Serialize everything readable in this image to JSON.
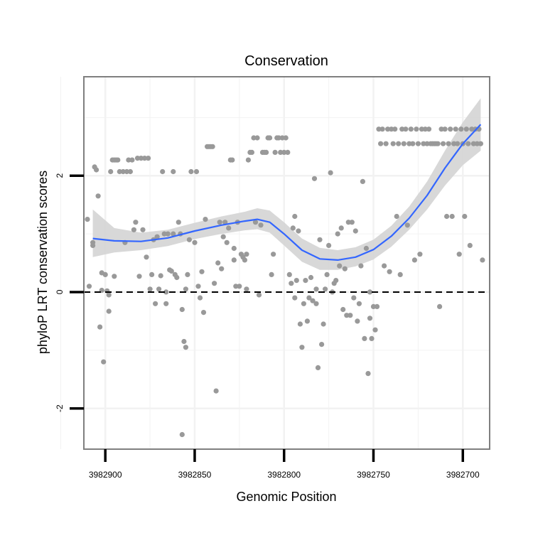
{
  "chart_data": {
    "type": "scatter",
    "title": "Conservation",
    "xlabel": "Genomic Position",
    "ylabel": "phyloP LRT conservation scores",
    "x_reversed": true,
    "xlim": [
      3982912,
      3982685
    ],
    "ylim": [
      -2.7,
      3.7
    ],
    "x_ticks": [
      {
        "value": 3982900,
        "label": "3982900"
      },
      {
        "value": 3982850,
        "label": "3982850"
      },
      {
        "value": 3982800,
        "label": "3982800"
      },
      {
        "value": 3982750,
        "label": "3982750"
      },
      {
        "value": 3982700,
        "label": "3982700"
      }
    ],
    "y_ticks": [
      {
        "value": 2,
        "label": "2"
      },
      {
        "value": 0,
        "label": "0"
      },
      {
        "value": -2,
        "label": "-2"
      }
    ],
    "x_minor_grid": [
      3982925,
      3982875,
      3982825,
      3982775,
      3982725
    ],
    "y_minor_grid": [
      3,
      1,
      -1
    ],
    "reference_line": {
      "y": 0,
      "style": "dashed"
    },
    "grid": true,
    "colors": {
      "points": "#999999",
      "smooth": "#3366ff",
      "ribbon": "#d4d4d4",
      "panel_border": "#7f7f7f",
      "grid": "#f2f2f2"
    },
    "smooth": [
      {
        "x": 3982907,
        "y": 0.92,
        "lo": 0.6,
        "hi": 1.42
      },
      {
        "x": 3982895,
        "y": 0.88,
        "lo": 0.68,
        "hi": 1.1
      },
      {
        "x": 3982880,
        "y": 0.87,
        "lo": 0.72,
        "hi": 1.02
      },
      {
        "x": 3982865,
        "y": 0.93,
        "lo": 0.79,
        "hi": 1.07
      },
      {
        "x": 3982850,
        "y": 1.05,
        "lo": 0.91,
        "hi": 1.19
      },
      {
        "x": 3982835,
        "y": 1.15,
        "lo": 1.0,
        "hi": 1.3
      },
      {
        "x": 3982822,
        "y": 1.22,
        "lo": 1.06,
        "hi": 1.38
      },
      {
        "x": 3982815,
        "y": 1.25,
        "lo": 1.08,
        "hi": 1.44
      },
      {
        "x": 3982808,
        "y": 1.2,
        "lo": 1.02,
        "hi": 1.4
      },
      {
        "x": 3982800,
        "y": 1.0,
        "lo": 0.8,
        "hi": 1.2
      },
      {
        "x": 3982790,
        "y": 0.72,
        "lo": 0.52,
        "hi": 0.92
      },
      {
        "x": 3982780,
        "y": 0.57,
        "lo": 0.38,
        "hi": 0.76
      },
      {
        "x": 3982770,
        "y": 0.55,
        "lo": 0.38,
        "hi": 0.72
      },
      {
        "x": 3982760,
        "y": 0.6,
        "lo": 0.44,
        "hi": 0.77
      },
      {
        "x": 3982750,
        "y": 0.73,
        "lo": 0.56,
        "hi": 0.9
      },
      {
        "x": 3982740,
        "y": 0.96,
        "lo": 0.78,
        "hi": 1.14
      },
      {
        "x": 3982730,
        "y": 1.27,
        "lo": 1.07,
        "hi": 1.47
      },
      {
        "x": 3982720,
        "y": 1.66,
        "lo": 1.42,
        "hi": 1.9
      },
      {
        "x": 3982710,
        "y": 2.13,
        "lo": 1.83,
        "hi": 2.43
      },
      {
        "x": 3982700,
        "y": 2.55,
        "lo": 2.18,
        "hi": 2.92
      },
      {
        "x": 3982690,
        "y": 2.88,
        "lo": 2.43,
        "hi": 3.33
      }
    ],
    "points": [
      [
        3982910,
        1.25
      ],
      [
        3982909,
        0.1
      ],
      [
        3982907,
        0.85
      ],
      [
        3982907,
        0.8
      ],
      [
        3982906,
        2.15
      ],
      [
        3982905,
        2.1
      ],
      [
        3982904,
        1.65
      ],
      [
        3982903,
        -0.6
      ],
      [
        3982902,
        0.03
      ],
      [
        3982902,
        0.33
      ],
      [
        3982901,
        -1.2
      ],
      [
        3982900,
        0.3
      ],
      [
        3982899,
        0.02
      ],
      [
        3982898,
        -0.05
      ],
      [
        3982898,
        -0.33
      ],
      [
        3982897,
        2.07
      ],
      [
        3982896,
        2.27
      ],
      [
        3982895,
        2.27
      ],
      [
        3982895,
        0.27
      ],
      [
        3982894,
        2.27
      ],
      [
        3982893,
        2.27
      ],
      [
        3982892,
        2.07
      ],
      [
        3982890,
        2.07
      ],
      [
        3982889,
        0.85
      ],
      [
        3982888,
        2.07
      ],
      [
        3982887,
        2.27
      ],
      [
        3982886,
        2.07
      ],
      [
        3982885,
        2.27
      ],
      [
        3982884,
        1.07
      ],
      [
        3982883,
        1.2
      ],
      [
        3982882,
        2.3
      ],
      [
        3982881,
        0.27
      ],
      [
        3982880,
        2.3
      ],
      [
        3982879,
        1.07
      ],
      [
        3982878,
        2.3
      ],
      [
        3982877,
        0.6
      ],
      [
        3982876,
        2.3
      ],
      [
        3982875,
        0.05
      ],
      [
        3982874,
        0.3
      ],
      [
        3982873,
        0.9
      ],
      [
        3982872,
        -0.2
      ],
      [
        3982871,
        0.95
      ],
      [
        3982870,
        0.05
      ],
      [
        3982869,
        0.28
      ],
      [
        3982868,
        2.07
      ],
      [
        3982867,
        1.0
      ],
      [
        3982866,
        0.0
      ],
      [
        3982866,
        -0.2
      ],
      [
        3982865,
        1.0
      ],
      [
        3982864,
        0.38
      ],
      [
        3982863,
        0.36
      ],
      [
        3982862,
        1.0
      ],
      [
        3982862,
        2.07
      ],
      [
        3982861,
        0.3
      ],
      [
        3982860,
        0.25
      ],
      [
        3982859,
        1.2
      ],
      [
        3982858,
        1.0
      ],
      [
        3982857,
        -0.3
      ],
      [
        3982856,
        -0.85
      ],
      [
        3982855,
        -0.95
      ],
      [
        3982855,
        0.05
      ],
      [
        3982854,
        0.3
      ],
      [
        3982853,
        0.9
      ],
      [
        3982852,
        2.07
      ],
      [
        3982850,
        0.85
      ],
      [
        3982849,
        2.07
      ],
      [
        3982848,
        0.1
      ],
      [
        3982847,
        -0.1
      ],
      [
        3982846,
        0.35
      ],
      [
        3982845,
        -0.35
      ],
      [
        3982844,
        1.25
      ],
      [
        3982843,
        2.5
      ],
      [
        3982842,
        2.5
      ],
      [
        3982841,
        2.5
      ],
      [
        3982840,
        2.5
      ],
      [
        3982839,
        0.15
      ],
      [
        3982838,
        -1.7
      ],
      [
        3982837,
        0.5
      ],
      [
        3982836,
        1.2
      ],
      [
        3982835,
        0.4
      ],
      [
        3982834,
        0.95
      ],
      [
        3982833,
        1.2
      ],
      [
        3982832,
        0.85
      ],
      [
        3982831,
        1.1
      ],
      [
        3982830,
        2.27
      ],
      [
        3982829,
        2.27
      ],
      [
        3982828,
        0.75
      ],
      [
        3982828,
        0.55
      ],
      [
        3982827,
        0.1
      ],
      [
        3982826,
        1.2
      ],
      [
        3982825,
        0.1
      ],
      [
        3982824,
        0.65
      ],
      [
        3982823,
        0.6
      ],
      [
        3982822,
        0.55
      ],
      [
        3982821,
        0.05
      ],
      [
        3982821,
        0.65
      ],
      [
        3982820,
        2.27
      ],
      [
        3982819,
        2.4
      ],
      [
        3982818,
        2.4
      ],
      [
        3982817,
        2.65
      ],
      [
        3982816,
        1.2
      ],
      [
        3982815,
        2.65
      ],
      [
        3982814,
        -0.05
      ],
      [
        3982813,
        1.15
      ],
      [
        3982812,
        2.4
      ],
      [
        3982811,
        2.4
      ],
      [
        3982810,
        2.4
      ],
      [
        3982809,
        2.65
      ],
      [
        3982808,
        2.65
      ],
      [
        3982807,
        0.3
      ],
      [
        3982806,
        0.65
      ],
      [
        3982805,
        2.4
      ],
      [
        3982804,
        2.65
      ],
      [
        3982803,
        2.65
      ],
      [
        3982802,
        2.4
      ],
      [
        3982801,
        2.65
      ],
      [
        3982800,
        2.4
      ],
      [
        3982799,
        2.65
      ],
      [
        3982798,
        2.4
      ],
      [
        3982797,
        0.3
      ],
      [
        3982796,
        0.15
      ],
      [
        3982795,
        1.1
      ],
      [
        3982794,
        -0.1
      ],
      [
        3982794,
        1.3
      ],
      [
        3982793,
        0.2
      ],
      [
        3982792,
        1.05
      ],
      [
        3982791,
        -0.55
      ],
      [
        3982790,
        -0.95
      ],
      [
        3982789,
        -0.2
      ],
      [
        3982788,
        0.2
      ],
      [
        3982787,
        -0.5
      ],
      [
        3982786,
        -0.1
      ],
      [
        3982785,
        0.25
      ],
      [
        3982784,
        -0.15
      ],
      [
        3982783,
        1.95
      ],
      [
        3982782,
        -0.2
      ],
      [
        3982782,
        0.05
      ],
      [
        3982781,
        -1.3
      ],
      [
        3982780,
        0.9
      ],
      [
        3982779,
        -0.9
      ],
      [
        3982778,
        -0.55
      ],
      [
        3982777,
        0.05
      ],
      [
        3982776,
        0.3
      ],
      [
        3982775,
        0.8
      ],
      [
        3982774,
        2.05
      ],
      [
        3982773,
        0.0
      ],
      [
        3982772,
        0.15
      ],
      [
        3982771,
        0.2
      ],
      [
        3982770,
        1.0
      ],
      [
        3982769,
        0.45
      ],
      [
        3982768,
        1.1
      ],
      [
        3982767,
        -0.3
      ],
      [
        3982766,
        0.4
      ],
      [
        3982765,
        -0.4
      ],
      [
        3982764,
        1.2
      ],
      [
        3982763,
        -0.4
      ],
      [
        3982762,
        1.2
      ],
      [
        3982761,
        -0.1
      ],
      [
        3982760,
        1.05
      ],
      [
        3982759,
        -0.5
      ],
      [
        3982758,
        -0.2
      ],
      [
        3982757,
        0.45
      ],
      [
        3982756,
        1.9
      ],
      [
        3982755,
        -0.8
      ],
      [
        3982754,
        0.75
      ],
      [
        3982753,
        -1.4
      ],
      [
        3982752,
        0.0
      ],
      [
        3982752,
        -0.45
      ],
      [
        3982751,
        -0.8
      ],
      [
        3982750,
        -0.25
      ],
      [
        3982749,
        -0.65
      ],
      [
        3982748,
        -0.25
      ],
      [
        3982747,
        2.8
      ],
      [
        3982746,
        2.55
      ],
      [
        3982745,
        2.8
      ],
      [
        3982744,
        0.45
      ],
      [
        3982743,
        2.55
      ],
      [
        3982742,
        2.8
      ],
      [
        3982741,
        0.35
      ],
      [
        3982740,
        2.8
      ],
      [
        3982739,
        2.55
      ],
      [
        3982738,
        2.8
      ],
      [
        3982737,
        1.3
      ],
      [
        3982736,
        2.55
      ],
      [
        3982735,
        0.3
      ],
      [
        3982734,
        2.8
      ],
      [
        3982733,
        2.55
      ],
      [
        3982732,
        2.8
      ],
      [
        3982731,
        1.15
      ],
      [
        3982730,
        2.55
      ],
      [
        3982729,
        2.8
      ],
      [
        3982728,
        2.55
      ],
      [
        3982727,
        0.55
      ],
      [
        3982726,
        2.8
      ],
      [
        3982725,
        2.55
      ],
      [
        3982724,
        0.65
      ],
      [
        3982723,
        2.8
      ],
      [
        3982722,
        2.55
      ],
      [
        3982721,
        2.8
      ],
      [
        3982720,
        2.55
      ],
      [
        3982719,
        2.8
      ],
      [
        3982718,
        2.55
      ],
      [
        3982717,
        2.55
      ],
      [
        3982716,
        2.55
      ],
      [
        3982715,
        2.55
      ],
      [
        3982714,
        2.55
      ],
      [
        3982713,
        -0.25
      ],
      [
        3982712,
        2.8
      ],
      [
        3982711,
        2.55
      ],
      [
        3982710,
        2.8
      ],
      [
        3982709,
        1.3
      ],
      [
        3982708,
        2.55
      ],
      [
        3982707,
        2.8
      ],
      [
        3982706,
        1.3
      ],
      [
        3982705,
        2.55
      ],
      [
        3982704,
        2.8
      ],
      [
        3982703,
        2.55
      ],
      [
        3982702,
        0.65
      ],
      [
        3982701,
        2.8
      ],
      [
        3982700,
        2.55
      ],
      [
        3982699,
        1.3
      ],
      [
        3982698,
        2.8
      ],
      [
        3982697,
        2.55
      ],
      [
        3982696,
        0.8
      ],
      [
        3982695,
        2.8
      ],
      [
        3982694,
        2.55
      ],
      [
        3982693,
        2.8
      ],
      [
        3982692,
        2.55
      ],
      [
        3982691,
        2.8
      ],
      [
        3982690,
        2.55
      ],
      [
        3982689,
        0.55
      ],
      [
        3982857,
        -2.45
      ]
    ]
  }
}
